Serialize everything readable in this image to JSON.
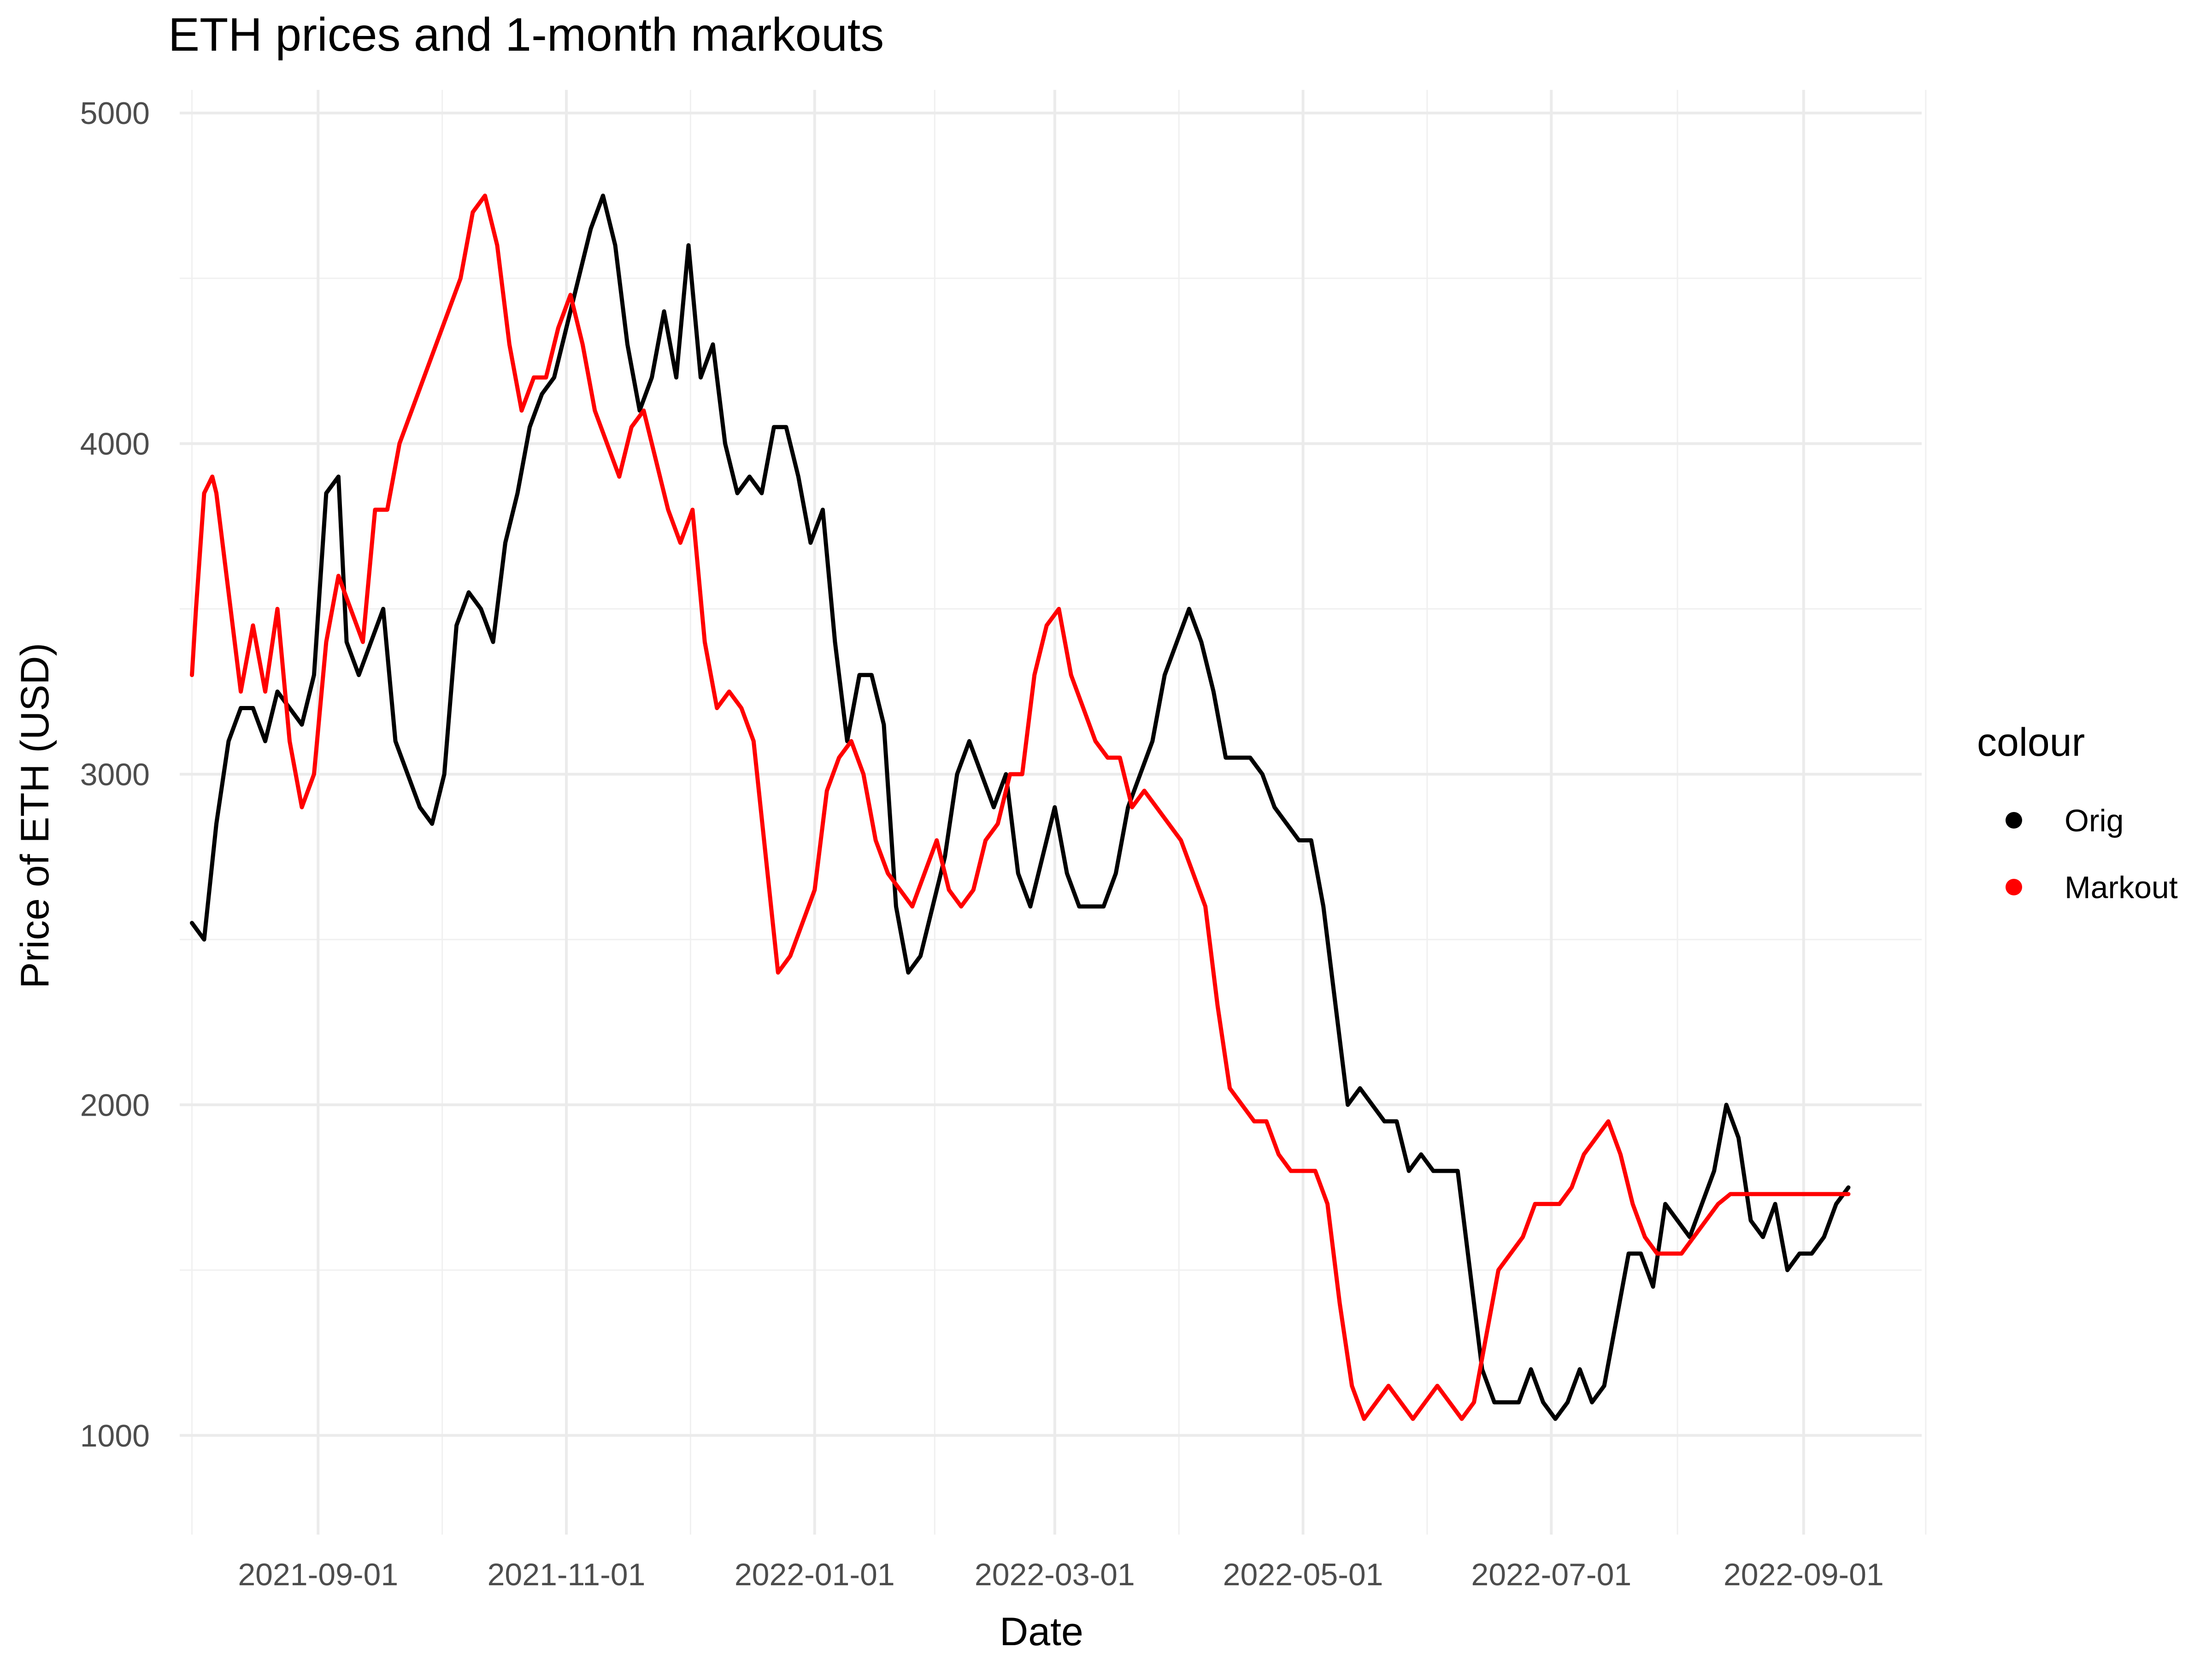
{
  "chart_data": {
    "type": "line",
    "title": "ETH prices and 1-month markouts",
    "xlabel": "Date",
    "ylabel": "Price of ETH (USD)",
    "grid": true,
    "legend": {
      "title": "colour",
      "position": "right"
    },
    "x_tick_labels": [
      "2021-09-01",
      "2021-11-01",
      "2022-01-01",
      "2022-03-01",
      "2022-05-01",
      "2022-07-01",
      "2022-09-01"
    ],
    "y_tick_labels": [
      "1000",
      "2000",
      "3000",
      "4000",
      "5000"
    ],
    "xlim": [
      "2021-07-29",
      "2022-09-30"
    ],
    "ylim": [
      700,
      5070
    ],
    "series": [
      {
        "name": "Orig",
        "color": "#000000",
        "points": [
          [
            "2021-08-01",
            2550
          ],
          [
            "2021-08-04",
            2500
          ],
          [
            "2021-08-07",
            2850
          ],
          [
            "2021-08-10",
            3100
          ],
          [
            "2021-08-13",
            3200
          ],
          [
            "2021-08-16",
            3200
          ],
          [
            "2021-08-19",
            3100
          ],
          [
            "2021-08-22",
            3250
          ],
          [
            "2021-08-25",
            3200
          ],
          [
            "2021-08-28",
            3150
          ],
          [
            "2021-08-31",
            3300
          ],
          [
            "2021-09-03",
            3850
          ],
          [
            "2021-09-06",
            3900
          ],
          [
            "2021-09-08",
            3400
          ],
          [
            "2021-09-11",
            3300
          ],
          [
            "2021-09-14",
            3400
          ],
          [
            "2021-09-17",
            3500
          ],
          [
            "2021-09-20",
            3100
          ],
          [
            "2021-09-23",
            3000
          ],
          [
            "2021-09-26",
            2900
          ],
          [
            "2021-09-29",
            2850
          ],
          [
            "2021-10-02",
            3000
          ],
          [
            "2021-10-05",
            3450
          ],
          [
            "2021-10-08",
            3550
          ],
          [
            "2021-10-11",
            3500
          ],
          [
            "2021-10-14",
            3400
          ],
          [
            "2021-10-17",
            3700
          ],
          [
            "2021-10-20",
            3850
          ],
          [
            "2021-10-23",
            4050
          ],
          [
            "2021-10-26",
            4150
          ],
          [
            "2021-10-29",
            4200
          ],
          [
            "2021-11-01",
            4350
          ],
          [
            "2021-11-04",
            4500
          ],
          [
            "2021-11-07",
            4650
          ],
          [
            "2021-11-10",
            4750
          ],
          [
            "2021-11-13",
            4600
          ],
          [
            "2021-11-16",
            4300
          ],
          [
            "2021-11-19",
            4100
          ],
          [
            "2021-11-22",
            4200
          ],
          [
            "2021-11-25",
            4400
          ],
          [
            "2021-11-28",
            4200
          ],
          [
            "2021-12-01",
            4600
          ],
          [
            "2021-12-04",
            4200
          ],
          [
            "2021-12-07",
            4300
          ],
          [
            "2021-12-10",
            4000
          ],
          [
            "2021-12-13",
            3850
          ],
          [
            "2021-12-16",
            3900
          ],
          [
            "2021-12-19",
            3850
          ],
          [
            "2021-12-22",
            4050
          ],
          [
            "2021-12-25",
            4050
          ],
          [
            "2021-12-28",
            3900
          ],
          [
            "2021-12-31",
            3700
          ],
          [
            "2022-01-03",
            3800
          ],
          [
            "2022-01-06",
            3400
          ],
          [
            "2022-01-09",
            3100
          ],
          [
            "2022-01-12",
            3300
          ],
          [
            "2022-01-15",
            3300
          ],
          [
            "2022-01-18",
            3150
          ],
          [
            "2022-01-21",
            2600
          ],
          [
            "2022-01-24",
            2400
          ],
          [
            "2022-01-27",
            2450
          ],
          [
            "2022-01-30",
            2600
          ],
          [
            "2022-02-02",
            2750
          ],
          [
            "2022-02-05",
            3000
          ],
          [
            "2022-02-08",
            3100
          ],
          [
            "2022-02-11",
            3000
          ],
          [
            "2022-02-14",
            2900
          ],
          [
            "2022-02-17",
            3000
          ],
          [
            "2022-02-20",
            2700
          ],
          [
            "2022-02-23",
            2600
          ],
          [
            "2022-02-26",
            2750
          ],
          [
            "2022-03-01",
            2900
          ],
          [
            "2022-03-04",
            2700
          ],
          [
            "2022-03-07",
            2600
          ],
          [
            "2022-03-10",
            2600
          ],
          [
            "2022-03-13",
            2600
          ],
          [
            "2022-03-16",
            2700
          ],
          [
            "2022-03-19",
            2900
          ],
          [
            "2022-03-22",
            3000
          ],
          [
            "2022-03-25",
            3100
          ],
          [
            "2022-03-28",
            3300
          ],
          [
            "2022-03-31",
            3400
          ],
          [
            "2022-04-03",
            3500
          ],
          [
            "2022-04-06",
            3400
          ],
          [
            "2022-04-09",
            3250
          ],
          [
            "2022-04-12",
            3050
          ],
          [
            "2022-04-15",
            3050
          ],
          [
            "2022-04-18",
            3050
          ],
          [
            "2022-04-21",
            3000
          ],
          [
            "2022-04-24",
            2900
          ],
          [
            "2022-04-27",
            2850
          ],
          [
            "2022-04-30",
            2800
          ],
          [
            "2022-05-03",
            2800
          ],
          [
            "2022-05-06",
            2600
          ],
          [
            "2022-05-09",
            2300
          ],
          [
            "2022-05-12",
            2000
          ],
          [
            "2022-05-15",
            2050
          ],
          [
            "2022-05-18",
            2000
          ],
          [
            "2022-05-21",
            1950
          ],
          [
            "2022-05-24",
            1950
          ],
          [
            "2022-05-27",
            1800
          ],
          [
            "2022-05-30",
            1850
          ],
          [
            "2022-06-02",
            1800
          ],
          [
            "2022-06-05",
            1800
          ],
          [
            "2022-06-08",
            1800
          ],
          [
            "2022-06-11",
            1500
          ],
          [
            "2022-06-14",
            1200
          ],
          [
            "2022-06-17",
            1100
          ],
          [
            "2022-06-20",
            1100
          ],
          [
            "2022-06-23",
            1100
          ],
          [
            "2022-06-26",
            1200
          ],
          [
            "2022-06-29",
            1100
          ],
          [
            "2022-07-02",
            1050
          ],
          [
            "2022-07-05",
            1100
          ],
          [
            "2022-07-08",
            1200
          ],
          [
            "2022-07-11",
            1100
          ],
          [
            "2022-07-14",
            1150
          ],
          [
            "2022-07-17",
            1350
          ],
          [
            "2022-07-20",
            1550
          ],
          [
            "2022-07-23",
            1550
          ],
          [
            "2022-07-26",
            1450
          ],
          [
            "2022-07-29",
            1700
          ],
          [
            "2022-08-01",
            1650
          ],
          [
            "2022-08-04",
            1600
          ],
          [
            "2022-08-07",
            1700
          ],
          [
            "2022-08-10",
            1800
          ],
          [
            "2022-08-13",
            2000
          ],
          [
            "2022-08-16",
            1900
          ],
          [
            "2022-08-19",
            1650
          ],
          [
            "2022-08-22",
            1600
          ],
          [
            "2022-08-25",
            1700
          ],
          [
            "2022-08-28",
            1500
          ],
          [
            "2022-08-31",
            1550
          ],
          [
            "2022-09-03",
            1550
          ],
          [
            "2022-09-06",
            1600
          ],
          [
            "2022-09-09",
            1700
          ],
          [
            "2022-09-12",
            1750
          ]
        ]
      },
      {
        "name": "Markout",
        "color": "#ff0000",
        "points": [
          [
            "2021-08-01",
            3300
          ],
          [
            "2021-08-02",
            3500
          ],
          [
            "2021-08-04",
            3850
          ],
          [
            "2021-08-06",
            3900
          ],
          [
            "2021-08-07",
            3850
          ],
          [
            "2021-08-10",
            3550
          ],
          [
            "2021-08-13",
            3250
          ],
          [
            "2021-08-16",
            3450
          ],
          [
            "2021-08-19",
            3250
          ],
          [
            "2021-08-22",
            3500
          ],
          [
            "2021-08-25",
            3100
          ],
          [
            "2021-08-28",
            2900
          ],
          [
            "2021-08-31",
            3000
          ],
          [
            "2021-09-03",
            3400
          ],
          [
            "2021-09-06",
            3600
          ],
          [
            "2021-09-09",
            3500
          ],
          [
            "2021-09-12",
            3400
          ],
          [
            "2021-09-15",
            3800
          ],
          [
            "2021-09-18",
            3800
          ],
          [
            "2021-09-21",
            4000
          ],
          [
            "2021-09-24",
            4100
          ],
          [
            "2021-09-27",
            4200
          ],
          [
            "2021-09-30",
            4300
          ],
          [
            "2021-10-03",
            4400
          ],
          [
            "2021-10-06",
            4500
          ],
          [
            "2021-10-09",
            4700
          ],
          [
            "2021-10-12",
            4750
          ],
          [
            "2021-10-15",
            4600
          ],
          [
            "2021-10-18",
            4300
          ],
          [
            "2021-10-21",
            4100
          ],
          [
            "2021-10-24",
            4200
          ],
          [
            "2021-10-27",
            4200
          ],
          [
            "2021-10-30",
            4350
          ],
          [
            "2021-11-02",
            4450
          ],
          [
            "2021-11-05",
            4300
          ],
          [
            "2021-11-08",
            4100
          ],
          [
            "2021-11-11",
            4000
          ],
          [
            "2021-11-14",
            3900
          ],
          [
            "2021-11-17",
            4050
          ],
          [
            "2021-11-20",
            4100
          ],
          [
            "2021-11-23",
            3950
          ],
          [
            "2021-11-26",
            3800
          ],
          [
            "2021-11-29",
            3700
          ],
          [
            "2021-12-02",
            3800
          ],
          [
            "2021-12-05",
            3400
          ],
          [
            "2021-12-08",
            3200
          ],
          [
            "2021-12-11",
            3250
          ],
          [
            "2021-12-14",
            3200
          ],
          [
            "2021-12-17",
            3100
          ],
          [
            "2021-12-20",
            2750
          ],
          [
            "2021-12-23",
            2400
          ],
          [
            "2021-12-26",
            2450
          ],
          [
            "2021-12-29",
            2550
          ],
          [
            "2022-01-01",
            2650
          ],
          [
            "2022-01-04",
            2950
          ],
          [
            "2022-01-07",
            3050
          ],
          [
            "2022-01-10",
            3100
          ],
          [
            "2022-01-13",
            3000
          ],
          [
            "2022-01-16",
            2800
          ],
          [
            "2022-01-19",
            2700
          ],
          [
            "2022-01-22",
            2650
          ],
          [
            "2022-01-25",
            2600
          ],
          [
            "2022-01-28",
            2700
          ],
          [
            "2022-01-31",
            2800
          ],
          [
            "2022-02-03",
            2650
          ],
          [
            "2022-02-06",
            2600
          ],
          [
            "2022-02-09",
            2650
          ],
          [
            "2022-02-12",
            2800
          ],
          [
            "2022-02-15",
            2850
          ],
          [
            "2022-02-18",
            3000
          ],
          [
            "2022-02-21",
            3000
          ],
          [
            "2022-02-24",
            3300
          ],
          [
            "2022-02-27",
            3450
          ],
          [
            "2022-03-02",
            3500
          ],
          [
            "2022-03-05",
            3300
          ],
          [
            "2022-03-08",
            3200
          ],
          [
            "2022-03-11",
            3100
          ],
          [
            "2022-03-14",
            3050
          ],
          [
            "2022-03-17",
            3050
          ],
          [
            "2022-03-20",
            2900
          ],
          [
            "2022-03-23",
            2950
          ],
          [
            "2022-03-26",
            2900
          ],
          [
            "2022-03-29",
            2850
          ],
          [
            "2022-04-01",
            2800
          ],
          [
            "2022-04-04",
            2700
          ],
          [
            "2022-04-07",
            2600
          ],
          [
            "2022-04-10",
            2300
          ],
          [
            "2022-04-13",
            2050
          ],
          [
            "2022-04-16",
            2000
          ],
          [
            "2022-04-19",
            1950
          ],
          [
            "2022-04-22",
            1950
          ],
          [
            "2022-04-25",
            1850
          ],
          [
            "2022-04-28",
            1800
          ],
          [
            "2022-05-01",
            1800
          ],
          [
            "2022-05-04",
            1800
          ],
          [
            "2022-05-07",
            1700
          ],
          [
            "2022-05-10",
            1400
          ],
          [
            "2022-05-13",
            1150
          ],
          [
            "2022-05-16",
            1050
          ],
          [
            "2022-05-19",
            1100
          ],
          [
            "2022-05-22",
            1150
          ],
          [
            "2022-05-25",
            1100
          ],
          [
            "2022-05-28",
            1050
          ],
          [
            "2022-05-31",
            1100
          ],
          [
            "2022-06-03",
            1150
          ],
          [
            "2022-06-06",
            1100
          ],
          [
            "2022-06-09",
            1050
          ],
          [
            "2022-06-12",
            1100
          ],
          [
            "2022-06-15",
            1300
          ],
          [
            "2022-06-18",
            1500
          ],
          [
            "2022-06-21",
            1550
          ],
          [
            "2022-06-24",
            1600
          ],
          [
            "2022-06-27",
            1700
          ],
          [
            "2022-06-30",
            1700
          ],
          [
            "2022-07-03",
            1700
          ],
          [
            "2022-07-06",
            1750
          ],
          [
            "2022-07-09",
            1850
          ],
          [
            "2022-07-12",
            1900
          ],
          [
            "2022-07-15",
            1950
          ],
          [
            "2022-07-18",
            1850
          ],
          [
            "2022-07-21",
            1700
          ],
          [
            "2022-07-24",
            1600
          ],
          [
            "2022-07-27",
            1550
          ],
          [
            "2022-07-30",
            1550
          ],
          [
            "2022-08-02",
            1550
          ],
          [
            "2022-08-05",
            1600
          ],
          [
            "2022-08-08",
            1650
          ],
          [
            "2022-08-11",
            1700
          ],
          [
            "2022-08-14",
            1730
          ],
          [
            "2022-09-12",
            1730
          ]
        ]
      }
    ]
  }
}
